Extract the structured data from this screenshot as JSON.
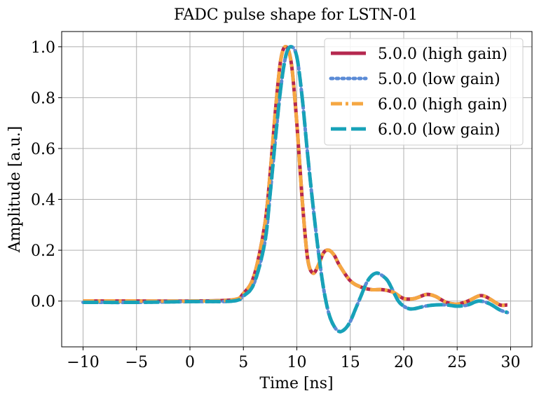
{
  "chart_data": {
    "type": "line",
    "title": "FADC pulse shape for LSTN-01",
    "xlabel": "Time [ns]",
    "ylabel": "Amplitude [a.u.]",
    "xlim": [
      -12,
      32
    ],
    "ylim": [
      -0.18,
      1.06
    ],
    "xticks": [
      -10,
      -5,
      0,
      5,
      10,
      15,
      20,
      25,
      30
    ],
    "yticks": [
      0.0,
      0.2,
      0.4,
      0.6,
      0.8,
      1.0
    ],
    "xtick_labels": [
      "−10",
      "−5",
      "0",
      "5",
      "10",
      "15",
      "20",
      "25",
      "30"
    ],
    "ytick_labels": [
      "0.0",
      "0.2",
      "0.4",
      "0.6",
      "0.8",
      "1.0"
    ],
    "grid": true,
    "legend_position": "top-right",
    "series": [
      {
        "name": "5.0.0 (high gain)",
        "color": "#b5284f",
        "style": "solid",
        "x": [
          -10,
          -5,
          0,
          4,
          5,
          6,
          7,
          7.5,
          8,
          8.5,
          9,
          9.5,
          10,
          10.5,
          11,
          11.5,
          12,
          12.5,
          13,
          13.5,
          14,
          15,
          16,
          17,
          18,
          19,
          20,
          21,
          22,
          22.5,
          23,
          24,
          25,
          26,
          27,
          27.5,
          28,
          29,
          29.7
        ],
        "y": [
          0.0,
          0.0,
          0.0,
          0.005,
          0.03,
          0.1,
          0.3,
          0.5,
          0.75,
          0.95,
          1.0,
          0.93,
          0.7,
          0.4,
          0.17,
          0.11,
          0.14,
          0.19,
          0.2,
          0.18,
          0.14,
          0.08,
          0.055,
          0.045,
          0.045,
          0.035,
          0.01,
          0.01,
          0.025,
          0.025,
          0.018,
          -0.005,
          -0.012,
          0.0,
          0.02,
          0.02,
          0.01,
          -0.015,
          -0.015
        ]
      },
      {
        "name": "5.0.0 (low gain)",
        "color": "#5b8bd6",
        "style": "dotted",
        "x": [
          -10,
          -5,
          0,
          4,
          5,
          6,
          7,
          7.5,
          8,
          8.5,
          9,
          9.5,
          10,
          10.5,
          11,
          11.5,
          12,
          12.5,
          13,
          13.5,
          14,
          14.5,
          15,
          15.5,
          16,
          16.5,
          17,
          17.5,
          18,
          18.5,
          19,
          19.5,
          20,
          20.5,
          21,
          22,
          23,
          24,
          25,
          26,
          27,
          28,
          29,
          29.7
        ],
        "y": [
          -0.005,
          -0.005,
          -0.002,
          0.0,
          0.02,
          0.07,
          0.23,
          0.42,
          0.64,
          0.84,
          0.97,
          1.0,
          0.96,
          0.8,
          0.58,
          0.38,
          0.2,
          0.05,
          -0.05,
          -0.1,
          -0.12,
          -0.11,
          -0.08,
          -0.03,
          0.02,
          0.07,
          0.1,
          0.11,
          0.1,
          0.08,
          0.04,
          0.0,
          -0.02,
          -0.03,
          -0.03,
          -0.02,
          -0.015,
          -0.015,
          -0.02,
          -0.015,
          0.0,
          -0.01,
          -0.035,
          -0.045
        ]
      },
      {
        "name": "6.0.0 (high gain)",
        "color": "#f5a742",
        "style": "dashdot",
        "x": [
          -10,
          -5,
          0,
          4,
          5,
          6,
          7,
          7.5,
          8,
          8.5,
          9,
          9.5,
          10,
          10.5,
          11,
          11.5,
          12,
          12.5,
          13,
          13.5,
          14,
          15,
          16,
          17,
          18,
          19,
          20,
          21,
          22,
          22.5,
          23,
          24,
          25,
          26,
          27,
          27.5,
          28,
          29,
          29.7
        ],
        "y": [
          0.0,
          0.0,
          0.0,
          0.005,
          0.03,
          0.1,
          0.3,
          0.5,
          0.75,
          0.95,
          1.0,
          0.93,
          0.7,
          0.4,
          0.17,
          0.11,
          0.14,
          0.19,
          0.2,
          0.18,
          0.14,
          0.08,
          0.055,
          0.045,
          0.045,
          0.035,
          0.01,
          0.01,
          0.025,
          0.025,
          0.018,
          -0.005,
          -0.012,
          0.0,
          0.02,
          0.02,
          0.01,
          -0.015,
          -0.015
        ]
      },
      {
        "name": "6.0.0 (low gain)",
        "color": "#17a2b8",
        "style": "dashed",
        "x": [
          -10,
          -5,
          0,
          4,
          5,
          6,
          7,
          7.5,
          8,
          8.5,
          9,
          9.5,
          10,
          10.5,
          11,
          11.5,
          12,
          12.5,
          13,
          13.5,
          14,
          14.5,
          15,
          15.5,
          16,
          16.5,
          17,
          17.5,
          18,
          18.5,
          19,
          19.5,
          20,
          20.5,
          21,
          22,
          23,
          24,
          25,
          26,
          27,
          28,
          29,
          29.7
        ],
        "y": [
          -0.005,
          -0.005,
          -0.002,
          0.0,
          0.02,
          0.07,
          0.23,
          0.42,
          0.64,
          0.84,
          0.97,
          1.0,
          0.96,
          0.8,
          0.58,
          0.38,
          0.2,
          0.05,
          -0.05,
          -0.1,
          -0.12,
          -0.11,
          -0.08,
          -0.03,
          0.02,
          0.07,
          0.1,
          0.11,
          0.1,
          0.08,
          0.04,
          0.0,
          -0.02,
          -0.03,
          -0.03,
          -0.02,
          -0.015,
          -0.015,
          -0.02,
          -0.015,
          0.0,
          -0.01,
          -0.035,
          -0.045
        ]
      }
    ]
  }
}
